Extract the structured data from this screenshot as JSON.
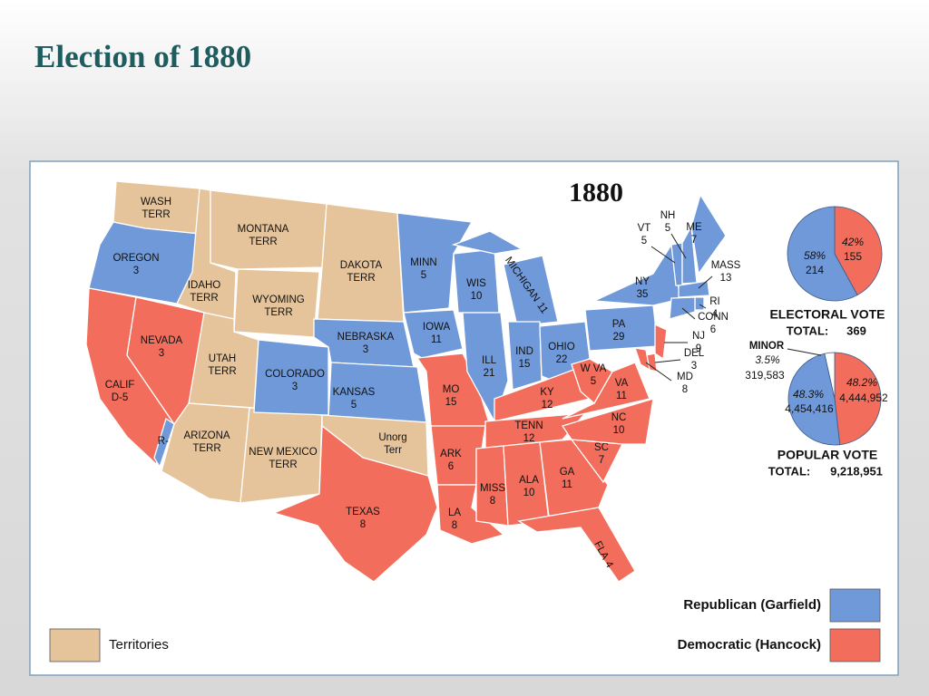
{
  "header": {
    "title": "Election of 1880"
  },
  "map": {
    "year": "1880",
    "parties": {
      "republican": {
        "label": "Republican (Garfield)",
        "color": "#6f99d9"
      },
      "democratic": {
        "label": "Democratic (Hancock)",
        "color": "#f26d5b"
      },
      "territories": {
        "label": "Territories",
        "color": "#e6c49b"
      },
      "minor": {
        "label": "MINOR",
        "color": "#ffffff"
      }
    },
    "regions": [
      {
        "lines": [
          "WASH",
          "TERR"
        ],
        "party": "territories"
      },
      {
        "lines": [
          "OREGON",
          3
        ],
        "party": "republican"
      },
      {
        "lines": [
          "CALIF",
          "D-5"
        ],
        "party": "democratic"
      },
      {
        "lines": [
          "R-1"
        ],
        "party": "republican"
      },
      {
        "lines": [
          "NEVADA",
          3
        ],
        "party": "democratic"
      },
      {
        "lines": [
          "IDAHO",
          "TERR"
        ],
        "party": "territories"
      },
      {
        "lines": [
          "MONTANA",
          "TERR"
        ],
        "party": "territories"
      },
      {
        "lines": [
          "WYOMING",
          "TERR"
        ],
        "party": "territories"
      },
      {
        "lines": [
          "DAKOTA",
          "TERR"
        ],
        "party": "territories"
      },
      {
        "lines": [
          "UTAH",
          "TERR"
        ],
        "party": "territories"
      },
      {
        "lines": [
          "ARIZONA",
          "TERR"
        ],
        "party": "territories"
      },
      {
        "lines": [
          "NEW MEXICO",
          "TERR"
        ],
        "party": "territories"
      },
      {
        "lines": [
          "COLORADO",
          3
        ],
        "party": "republican"
      },
      {
        "lines": [
          "NEBRASKA",
          3
        ],
        "party": "republican"
      },
      {
        "lines": [
          "KANSAS",
          5
        ],
        "party": "republican"
      },
      {
        "lines": [
          "Unorg",
          "Terr"
        ],
        "party": "territories"
      },
      {
        "lines": [
          "TEXAS",
          8
        ],
        "party": "democratic"
      },
      {
        "lines": [
          "MINN",
          5
        ],
        "party": "republican"
      },
      {
        "lines": [
          "IOWA",
          11
        ],
        "party": "republican"
      },
      {
        "lines": [
          "MO",
          15
        ],
        "party": "democratic"
      },
      {
        "lines": [
          "ARK",
          6
        ],
        "party": "democratic"
      },
      {
        "lines": [
          "LA",
          8
        ],
        "party": "democratic"
      },
      {
        "lines": [
          "WIS",
          10
        ],
        "party": "republican"
      },
      {
        "lines": [
          "MICHIGAN",
          11
        ],
        "party": "republican"
      },
      {
        "lines": [
          "ILL",
          21
        ],
        "party": "republican"
      },
      {
        "lines": [
          "IND",
          15
        ],
        "party": "republican"
      },
      {
        "lines": [
          "OHIO",
          22
        ],
        "party": "republican"
      },
      {
        "lines": [
          "KY",
          12
        ],
        "party": "democratic"
      },
      {
        "lines": [
          "TENN",
          12
        ],
        "party": "democratic"
      },
      {
        "lines": [
          "MISS",
          8
        ],
        "party": "democratic"
      },
      {
        "lines": [
          "ALA",
          10
        ],
        "party": "democratic"
      },
      {
        "lines": [
          "GA",
          11
        ],
        "party": "democratic"
      },
      {
        "lines": [
          "FLA",
          4
        ],
        "party": "democratic"
      },
      {
        "lines": [
          "SC",
          7
        ],
        "party": "democratic"
      },
      {
        "lines": [
          "NC",
          10
        ],
        "party": "democratic"
      },
      {
        "lines": [
          "VA",
          11
        ],
        "party": "democratic"
      },
      {
        "lines": [
          "W VA",
          5
        ],
        "party": "democratic"
      },
      {
        "lines": [
          "PA",
          29
        ],
        "party": "republican"
      },
      {
        "lines": [
          "NY",
          35
        ],
        "party": "republican"
      },
      {
        "lines": [
          "VT",
          5
        ],
        "party": "republican"
      },
      {
        "lines": [
          "NH",
          5
        ],
        "party": "republican"
      },
      {
        "lines": [
          "ME",
          7
        ],
        "party": "republican"
      },
      {
        "lines": [
          "MASS",
          13
        ],
        "party": "republican"
      },
      {
        "lines": [
          "RI",
          4
        ],
        "party": "republican"
      },
      {
        "lines": [
          "CONN",
          6
        ],
        "party": "republican"
      },
      {
        "lines": [
          "NJ",
          9
        ],
        "party": "democratic"
      },
      {
        "lines": [
          "DEL",
          3
        ],
        "party": "democratic"
      },
      {
        "lines": [
          "MD",
          8
        ],
        "party": "democratic"
      }
    ],
    "electoral_vote": {
      "title": "ELECTORAL  VOTE",
      "total_label": "TOTAL:",
      "total": 369,
      "slices": [
        {
          "party": "democratic",
          "percent": 42,
          "percent_label": "42%",
          "votes": 155
        },
        {
          "party": "republican",
          "percent": 58,
          "percent_label": "58%",
          "votes": 214
        }
      ]
    },
    "popular_vote": {
      "title": "POPULAR  VOTE",
      "total_label": "TOTAL:",
      "total": {
        "value": 9218951,
        "label": "9,218,951"
      },
      "slices": [
        {
          "party": "democratic",
          "percent": 48.2,
          "percent_label": "48.2%",
          "votes": {
            "value": 4444952,
            "label": "4,444,952"
          }
        },
        {
          "party": "republican",
          "percent": 48.3,
          "percent_label": "48.3%",
          "votes": {
            "value": 4454416,
            "label": "4,454,416"
          }
        },
        {
          "party": "minor",
          "name": "MINOR",
          "percent": 3.5,
          "percent_label": "3.5%",
          "votes": {
            "value": 319583,
            "label": "319,583"
          }
        }
      ]
    }
  }
}
